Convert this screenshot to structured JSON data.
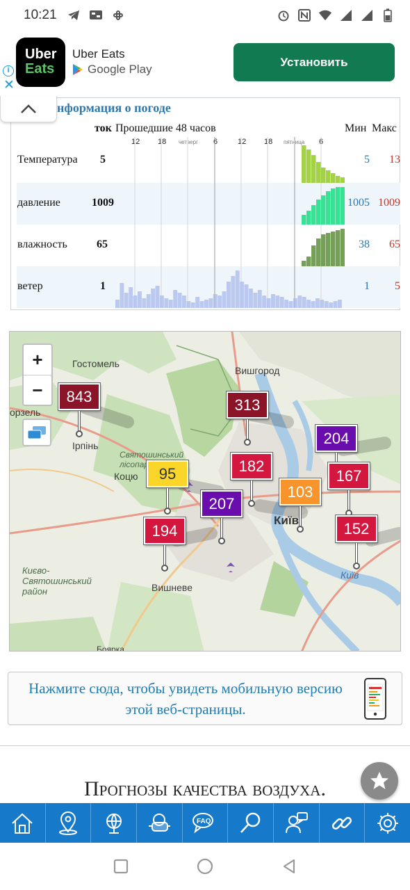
{
  "status_bar": {
    "time": "10:21",
    "left_icons": [
      "telegram-icon",
      "cast-icon",
      "slack-icon"
    ],
    "right_icons": [
      "alarm-icon",
      "nfc-icon",
      "wifi-icon",
      "signal-icon",
      "signal-icon",
      "battery-icon"
    ]
  },
  "ad": {
    "logo_line1": "Uber",
    "logo_line2": "Eats",
    "app_name": "Uber Eats",
    "store_name": "Google Play",
    "install_label": "Установить",
    "info_glyph": "i",
    "close_glyph": "✕"
  },
  "weather": {
    "title": "Информация о погоде",
    "header_current": "ток",
    "header_past": "Прошедшие 48 часов",
    "header_min": "Мин",
    "header_max": "Макс",
    "time_ticks": [
      "12",
      "18",
      "четверг",
      "6",
      "12",
      "18",
      "пятница",
      "6"
    ],
    "rows": [
      {
        "name": "Температура",
        "current": "5",
        "min": "5",
        "max": "13",
        "color": "#9acd32"
      },
      {
        "name": "давление",
        "current": "1009",
        "min": "1005",
        "max": "1009",
        "color": "#22e08a"
      },
      {
        "name": "влажность",
        "current": "65",
        "min": "38",
        "max": "65",
        "color": "#6f9a4e"
      },
      {
        "name": "ветер",
        "current": "1",
        "min": "1",
        "max": "5",
        "color": "#a9b9ec"
      }
    ]
  },
  "map": {
    "zoom_in": "+",
    "zoom_out": "−",
    "places": {
      "gostomel": "Гостомель",
      "vyshgorod": "Вишгород",
      "irpin": "Ірпінь",
      "kotsyubynske": "Коцю",
      "svyatoshyn_forest": "Святошинський лісопарк",
      "kyiv": "Київ",
      "kyiv_river": "Київ",
      "vyshneve": "Вишневе",
      "district": "Києво-Святошинський район",
      "vorzel": "орзель",
      "boyarka": "Боярка"
    },
    "markers": [
      {
        "value": "843",
        "color": "#8b1429",
        "text_color": "#ffffff"
      },
      {
        "value": "313",
        "color": "#8b1429",
        "text_color": "#ffffff"
      },
      {
        "value": "204",
        "color": "#6a0dad",
        "text_color": "#ffffff"
      },
      {
        "value": "182",
        "color": "#d3173f",
        "text_color": "#ffffff"
      },
      {
        "value": "167",
        "color": "#d3173f",
        "text_color": "#ffffff"
      },
      {
        "value": "95",
        "color": "#fbd62a",
        "text_color": "#333333"
      },
      {
        "value": "103",
        "color": "#f7942b",
        "text_color": "#ffffff"
      },
      {
        "value": "207",
        "color": "#6a0dad",
        "text_color": "#ffffff"
      },
      {
        "value": "194",
        "color": "#d3173f",
        "text_color": "#ffffff"
      },
      {
        "value": "152",
        "color": "#d3173f",
        "text_color": "#ffffff"
      }
    ]
  },
  "mobile_link": {
    "text": "Нажмите сюда, чтобы увидеть мобильную версию этой веб-страницы."
  },
  "forecast_title": "Прогнозы качества воздуха.",
  "bottom_nav": [
    "home-icon",
    "location-pin-icon",
    "globe-icon",
    "mask-icon",
    "faq-icon",
    "search-icon",
    "feedback-icon",
    "link-icon",
    "settings-icon"
  ],
  "system_nav": [
    "recents-icon",
    "home-circle-icon",
    "back-icon"
  ]
}
